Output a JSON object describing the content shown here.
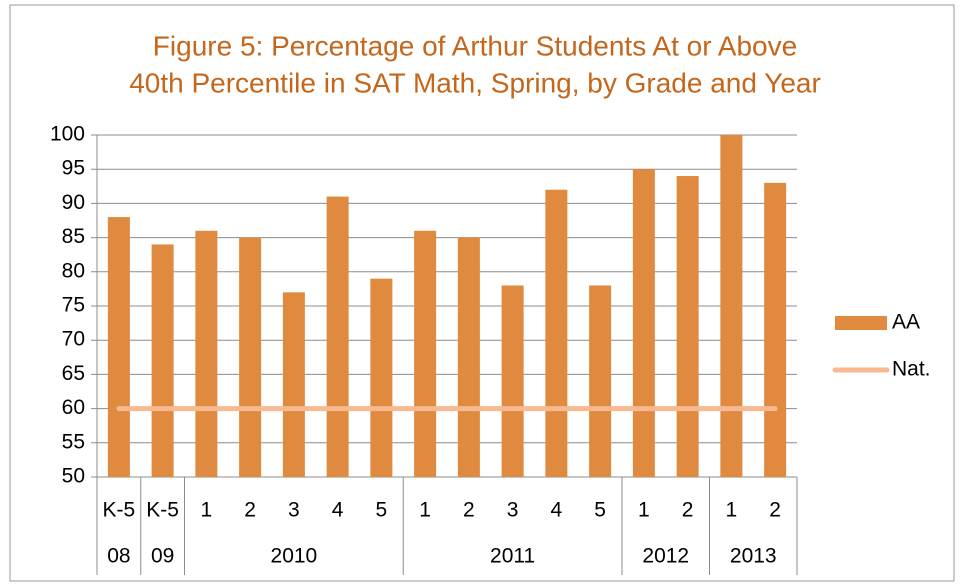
{
  "chart_data": {
    "type": "bar",
    "title": [
      "Figure 5: Percentage of Arthur Students At or Above",
      "40th Percentile in SAT Math, Spring, by Grade and Year"
    ],
    "groups": [
      {
        "label": "08",
        "categories": [
          "K-5"
        ]
      },
      {
        "label": "09",
        "categories": [
          "K-5"
        ]
      },
      {
        "label": "2010",
        "categories": [
          "1",
          "2",
          "3",
          "4",
          "5"
        ]
      },
      {
        "label": "2011",
        "categories": [
          "1",
          "2",
          "3",
          "4",
          "5"
        ]
      },
      {
        "label": "2012",
        "categories": [
          "1",
          "2"
        ]
      },
      {
        "label": "2013",
        "categories": [
          "1",
          "2"
        ]
      }
    ],
    "series": [
      {
        "name": "AA",
        "type": "bar",
        "color": "#df8a3f",
        "values": [
          88,
          84,
          86,
          85,
          77,
          91,
          79,
          86,
          85,
          78,
          92,
          78,
          95,
          94,
          100,
          93
        ]
      },
      {
        "name": "Nat.",
        "type": "line",
        "color": "#f7b98f",
        "values": [
          60,
          60,
          60,
          60,
          60,
          60,
          60,
          60,
          60,
          60,
          60,
          60,
          60,
          60,
          60,
          60
        ]
      }
    ],
    "ylim": [
      50,
      100
    ],
    "yticks": [
      50,
      55,
      60,
      65,
      70,
      75,
      80,
      85,
      90,
      95,
      100
    ],
    "grid": true,
    "legend": "right"
  }
}
